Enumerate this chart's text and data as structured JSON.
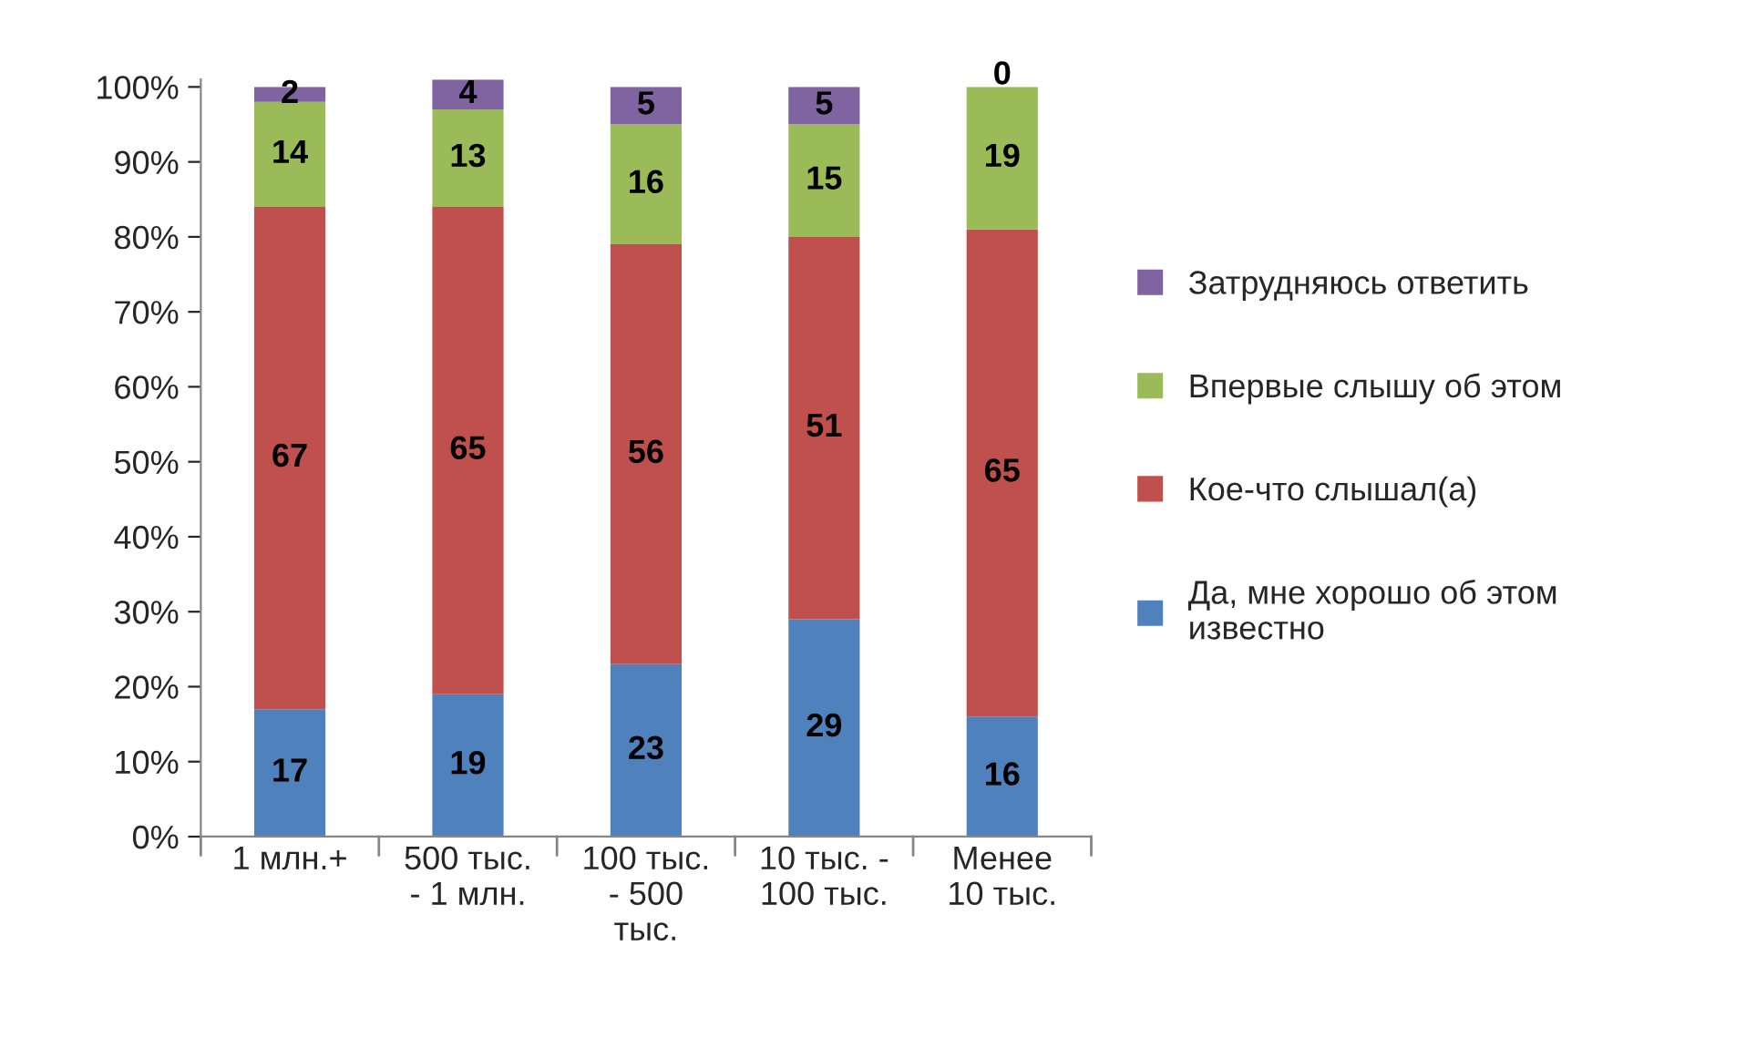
{
  "chart_data": {
    "type": "bar",
    "stacked": true,
    "data_labels": true,
    "legend": "right",
    "grid": false,
    "categories": [
      "1 млн.+",
      "500 тыс.\n- 1 млн.",
      "100 тыс.\n- 500\nтыс.",
      "10 тыс. -\n100 тыс.",
      "Менее\n10 тыс."
    ],
    "series": [
      {
        "name": "Да, мне хорошо об этом\nизвестно",
        "color": "#4f81bd",
        "values": [
          17,
          19,
          23,
          29,
          16
        ]
      },
      {
        "name": "Кое-что слышал(а)",
        "color": "#c0504d",
        "values": [
          67,
          65,
          56,
          51,
          65
        ]
      },
      {
        "name": "Впервые слышу об этом",
        "color": "#9bbb59",
        "values": [
          14,
          13,
          16,
          15,
          19
        ]
      },
      {
        "name": "Затрудняюсь ответить",
        "color": "#8064a2",
        "values": [
          2,
          4,
          5,
          5,
          0
        ]
      }
    ],
    "ylim": [
      0,
      101
    ],
    "yticks": [
      {
        "value": 0,
        "label": "0%"
      },
      {
        "value": 10,
        "label": "10%"
      },
      {
        "value": 20,
        "label": "20%"
      },
      {
        "value": 30,
        "label": "30%"
      },
      {
        "value": 40,
        "label": "40%"
      },
      {
        "value": 50,
        "label": "50%"
      },
      {
        "value": 60,
        "label": "60%"
      },
      {
        "value": 70,
        "label": "70%"
      },
      {
        "value": 80,
        "label": "80%"
      },
      {
        "value": 90,
        "label": "90%"
      },
      {
        "value": 100,
        "label": "100%"
      }
    ]
  }
}
